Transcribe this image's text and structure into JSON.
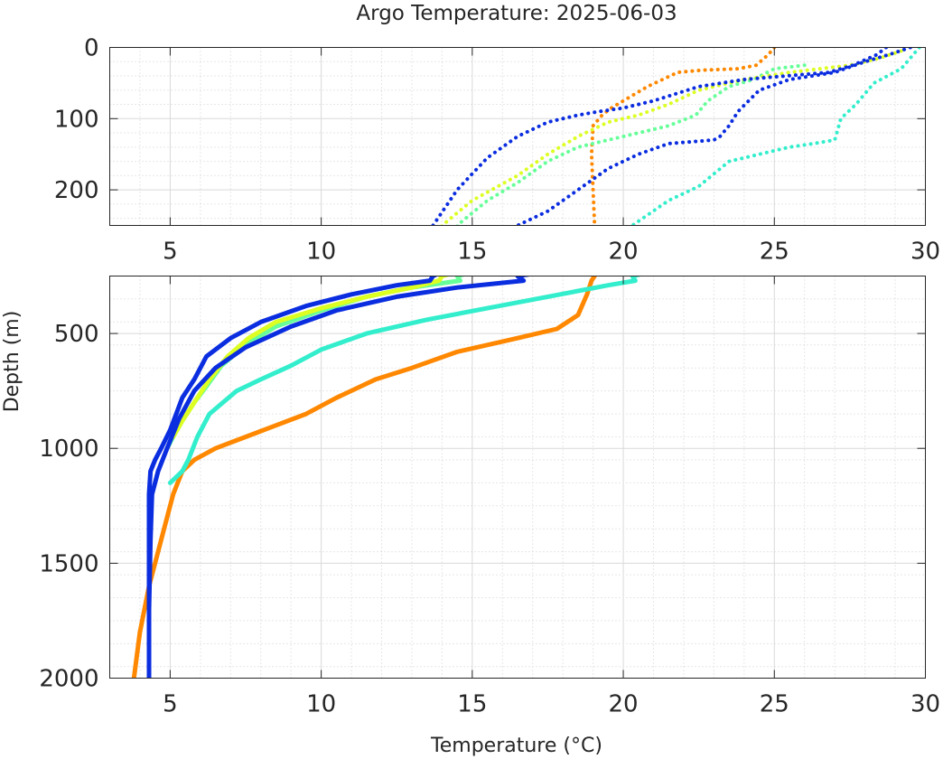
{
  "chart_data": {
    "type": "scatter",
    "title": "Argo Temperature: 2025-06-03",
    "xlabel": "Temperature (°C)",
    "ylabel": "Depth (m)",
    "grid": true,
    "panels": [
      {
        "name": "upper",
        "xlim": [
          3,
          30
        ],
        "ylim": [
          0,
          250
        ],
        "xticks": [
          "5",
          "10",
          "15",
          "20",
          "25",
          "30"
        ],
        "yticks": [
          "0",
          "100",
          "200"
        ]
      },
      {
        "name": "lower",
        "xlim": [
          3,
          30
        ],
        "ylim": [
          250,
          2000
        ],
        "xticks": [
          "5",
          "10",
          "15",
          "20",
          "25",
          "30"
        ],
        "yticks": [
          "500",
          "1000",
          "1500",
          "2000"
        ]
      }
    ],
    "series": [
      {
        "name": "profile-orange",
        "color": "#ff8800",
        "points": [
          [
            25.0,
            0
          ],
          [
            24.8,
            10
          ],
          [
            24.4,
            25
          ],
          [
            23.8,
            30
          ],
          [
            22.6,
            32
          ],
          [
            21.8,
            35
          ],
          [
            20.8,
            55
          ],
          [
            20.0,
            75
          ],
          [
            19.6,
            85
          ],
          [
            19.3,
            95
          ],
          [
            19.0,
            110
          ],
          [
            18.95,
            150
          ],
          [
            19.0,
            200
          ],
          [
            19.05,
            250
          ],
          [
            18.95,
            270
          ],
          [
            18.8,
            330
          ],
          [
            18.5,
            420
          ],
          [
            17.8,
            480
          ],
          [
            16.5,
            520
          ],
          [
            14.5,
            580
          ],
          [
            13.0,
            650
          ],
          [
            11.8,
            700
          ],
          [
            10.5,
            780
          ],
          [
            9.5,
            850
          ],
          [
            8.5,
            900
          ],
          [
            7.5,
            950
          ],
          [
            6.5,
            1000
          ],
          [
            5.8,
            1050
          ],
          [
            5.4,
            1100
          ],
          [
            5.1,
            1200
          ],
          [
            4.9,
            1300
          ],
          [
            4.6,
            1450
          ],
          [
            4.3,
            1600
          ],
          [
            4.0,
            1800
          ],
          [
            3.8,
            2000
          ]
        ]
      },
      {
        "name": "profile-cyan",
        "color": "#33eecc",
        "points": [
          [
            29.8,
            0
          ],
          [
            29.5,
            15
          ],
          [
            29.2,
            30
          ],
          [
            28.3,
            50
          ],
          [
            27.7,
            80
          ],
          [
            27.2,
            100
          ],
          [
            27.0,
            130
          ],
          [
            26.3,
            135
          ],
          [
            25.5,
            140
          ],
          [
            24.5,
            150
          ],
          [
            23.5,
            160
          ],
          [
            22.5,
            195
          ],
          [
            21.5,
            215
          ],
          [
            20.3,
            250
          ],
          [
            20.4,
            270
          ],
          [
            19.5,
            290
          ],
          [
            17.5,
            340
          ],
          [
            15.5,
            390
          ],
          [
            13.5,
            440
          ],
          [
            11.5,
            500
          ],
          [
            10.0,
            570
          ],
          [
            9.0,
            640
          ],
          [
            8.0,
            700
          ],
          [
            7.2,
            750
          ],
          [
            6.3,
            850
          ],
          [
            5.9,
            950
          ],
          [
            5.6,
            1050
          ],
          [
            5.4,
            1100
          ],
          [
            5.0,
            1150
          ]
        ]
      },
      {
        "name": "profile-green",
        "color": "#66ff99",
        "points": [
          [
            26.0,
            25
          ],
          [
            25.0,
            30
          ],
          [
            24.3,
            45
          ],
          [
            23.5,
            55
          ],
          [
            22.8,
            75
          ],
          [
            22.4,
            95
          ],
          [
            21.5,
            110
          ],
          [
            20.5,
            120
          ],
          [
            19.5,
            130
          ],
          [
            18.5,
            140
          ],
          [
            17.5,
            160
          ],
          [
            16.5,
            190
          ],
          [
            15.5,
            215
          ],
          [
            14.5,
            250
          ],
          [
            14.6,
            270
          ],
          [
            13.0,
            300
          ],
          [
            11.5,
            340
          ],
          [
            10.0,
            400
          ],
          [
            8.5,
            470
          ],
          [
            7.5,
            550
          ],
          [
            6.7,
            640
          ],
          [
            6.2,
            730
          ],
          [
            5.8,
            800
          ],
          [
            5.4,
            880
          ],
          [
            5.1,
            950
          ],
          [
            4.9,
            1000
          ]
        ]
      },
      {
        "name": "profile-yellow",
        "color": "#ddff22",
        "points": [
          [
            29.2,
            5
          ],
          [
            28.5,
            15
          ],
          [
            27.5,
            25
          ],
          [
            25.5,
            35
          ],
          [
            24.0,
            45
          ],
          [
            22.5,
            60
          ],
          [
            21.5,
            80
          ],
          [
            20.5,
            95
          ],
          [
            19.5,
            105
          ],
          [
            18.5,
            125
          ],
          [
            17.5,
            150
          ],
          [
            16.5,
            180
          ],
          [
            15.0,
            215
          ],
          [
            14.0,
            250
          ],
          [
            13.9,
            270
          ],
          [
            13.0,
            300
          ],
          [
            11.5,
            340
          ],
          [
            10.0,
            390
          ],
          [
            8.5,
            450
          ],
          [
            7.6,
            520
          ],
          [
            6.9,
            600
          ],
          [
            6.3,
            700
          ],
          [
            5.8,
            800
          ],
          [
            5.4,
            880
          ],
          [
            5.1,
            950
          ]
        ]
      },
      {
        "name": "profile-blue",
        "color": "#0a2de0",
        "points": [
          [
            29.5,
            0
          ],
          [
            28.8,
            10
          ],
          [
            28.0,
            20
          ],
          [
            27.0,
            35
          ],
          [
            25.5,
            45
          ],
          [
            24.5,
            60
          ],
          [
            23.8,
            90
          ],
          [
            23.5,
            110
          ],
          [
            23.2,
            125
          ],
          [
            23.0,
            130
          ],
          [
            21.5,
            135
          ],
          [
            20.5,
            150
          ],
          [
            19.5,
            170
          ],
          [
            18.5,
            200
          ],
          [
            17.5,
            230
          ],
          [
            16.5,
            250
          ],
          [
            16.7,
            270
          ],
          [
            14.5,
            300
          ],
          [
            12.5,
            340
          ],
          [
            10.5,
            400
          ],
          [
            9.0,
            470
          ],
          [
            7.5,
            560
          ],
          [
            6.5,
            650
          ],
          [
            5.8,
            750
          ],
          [
            5.3,
            870
          ],
          [
            4.9,
            1000
          ],
          [
            4.6,
            1100
          ],
          [
            4.4,
            1200
          ],
          [
            4.35,
            1400
          ],
          [
            4.3,
            1700
          ],
          [
            4.3,
            2000
          ]
        ]
      },
      {
        "name": "profile-blue-2",
        "color": "#0a2de0",
        "points": [
          [
            28.7,
            0
          ],
          [
            28.4,
            10
          ],
          [
            27.6,
            25
          ],
          [
            26.8,
            35
          ],
          [
            25.4,
            40
          ],
          [
            24.0,
            45
          ],
          [
            22.5,
            55
          ],
          [
            21.0,
            75
          ],
          [
            20.0,
            85
          ],
          [
            19.2,
            90
          ],
          [
            18.5,
            95
          ],
          [
            17.5,
            105
          ],
          [
            16.5,
            125
          ],
          [
            15.5,
            155
          ],
          [
            14.5,
            200
          ],
          [
            13.7,
            250
          ],
          [
            13.6,
            270
          ],
          [
            12.5,
            290
          ],
          [
            11.0,
            330
          ],
          [
            9.5,
            380
          ],
          [
            8.0,
            450
          ],
          [
            7.0,
            520
          ],
          [
            6.2,
            600
          ],
          [
            5.8,
            700
          ],
          [
            5.4,
            780
          ],
          [
            5.2,
            850
          ],
          [
            5.0,
            920
          ],
          [
            4.7,
            1000
          ],
          [
            4.5,
            1050
          ],
          [
            4.35,
            1100
          ],
          [
            4.3,
            1200
          ],
          [
            4.3,
            1500
          ],
          [
            4.3,
            2000
          ]
        ]
      }
    ]
  }
}
